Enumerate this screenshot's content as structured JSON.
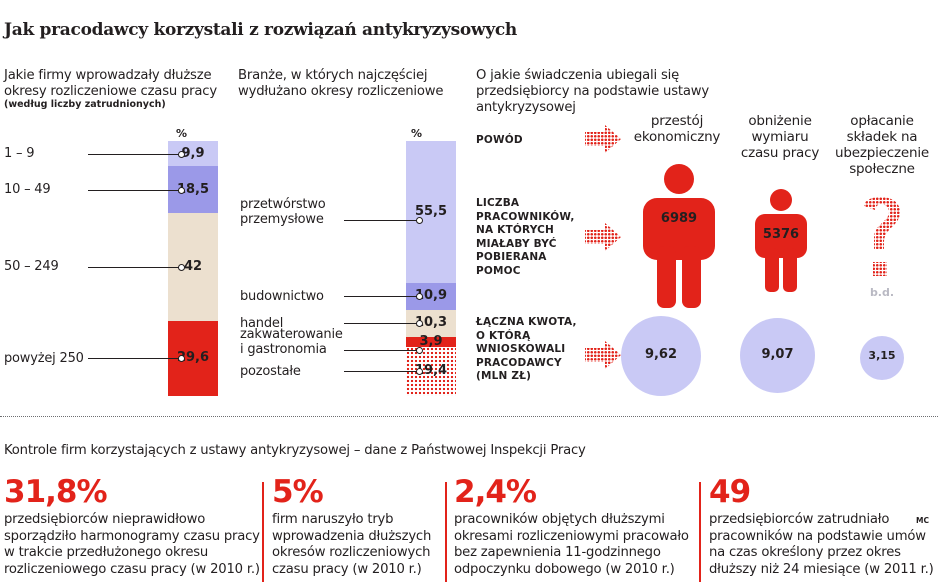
{
  "title": "Jak pracodawcy korzystali z rozwiązań antykryzysowych",
  "left": {
    "heading": "Jakie firmy wprowadzały dłuższe okresy rozliczeniowe czasu pracy",
    "note": "(według liczby zatrudnionych)",
    "pct_label": "%"
  },
  "middle": {
    "heading": "Branże, w których najczęściej wydłużano okresy rozliczeniowe",
    "pct_label": "%"
  },
  "right": {
    "heading": "O jakie świadczenia ubiegali się przedsiębiorcy na podstawie ustawy antykryzysowej",
    "columns": [
      "przestój ekonomiczny",
      "obniżenie wymiaru czasu pracy",
      "opłacanie składek na ubezpieczenie społeczne"
    ],
    "rows": [
      "POWÓD",
      "LICZBA PRACOWNIKÓW, NA KTÓRYCH MIAŁABY BYĆ POBIERANA POMOC",
      "ŁĄCZNA KWOTA, O KTÓRĄ WNIOSKOWALI PRACODAWCY (MLN ZŁ)"
    ],
    "workers": [
      "6989",
      "5376",
      "b.d."
    ],
    "amounts": [
      "9,62",
      "9,07",
      "3,15"
    ]
  },
  "bottom": {
    "heading": "Kontrole firm korzystających z ustawy antykryzysowej – dane z Państwowej Inspekcji Pracy",
    "stats": [
      {
        "value": "31,8%",
        "text": "przedsiębiorców nieprawidłowo sporządziło harmonogramy czasu pracy w trakcie przedłużonego okresu rozliczeniowego czasu pracy (w 2010 r.)"
      },
      {
        "value": "5%",
        "text": "firm naruszyło tryb wprowadzenia dłuższych okresów rozliczeniowych czasu pracy (w 2010 r.)"
      },
      {
        "value": "2,4%",
        "text": "pracowników objętych dłuższymi okresami rozliczeniowymi pracowało bez zapewnienia 11-godzinnego odpoczynku dobowego (w 2010 r.)"
      },
      {
        "value": "49",
        "text": "przedsiębiorców zatrudniało pracowników na podstawie umów na czas określony przez okres dłuższy niż 24 miesiące (w 2011 r.)"
      }
    ],
    "credit": "MC"
  },
  "colors": {
    "red": "#e2231a",
    "lavender": "#c9c9f5",
    "purple": "#9b99e8",
    "beige": "#ece0cf",
    "dotted_red": "#e2231a"
  },
  "chart_data": [
    {
      "type": "bar",
      "stacked": true,
      "categories": [
        "1 – 9",
        "10 – 49",
        "50 – 249",
        "powyżej 250"
      ],
      "values": [
        9.9,
        18.5,
        42,
        29.6
      ],
      "labels": [
        "9,9",
        "18,5",
        "42",
        "29,6"
      ],
      "ylabel": "%"
    },
    {
      "type": "bar",
      "stacked": true,
      "categories": [
        "przetwórstwo przemysłowe",
        "budownictwo",
        "handel",
        "zakwaterowanie i gastronomia",
        "pozostałe"
      ],
      "values": [
        55.5,
        10.9,
        10.3,
        3.9,
        19.4
      ],
      "labels": [
        "55,5",
        "10,9",
        "10,3",
        "3,9",
        "19,4"
      ],
      "ylabel": "%"
    }
  ]
}
